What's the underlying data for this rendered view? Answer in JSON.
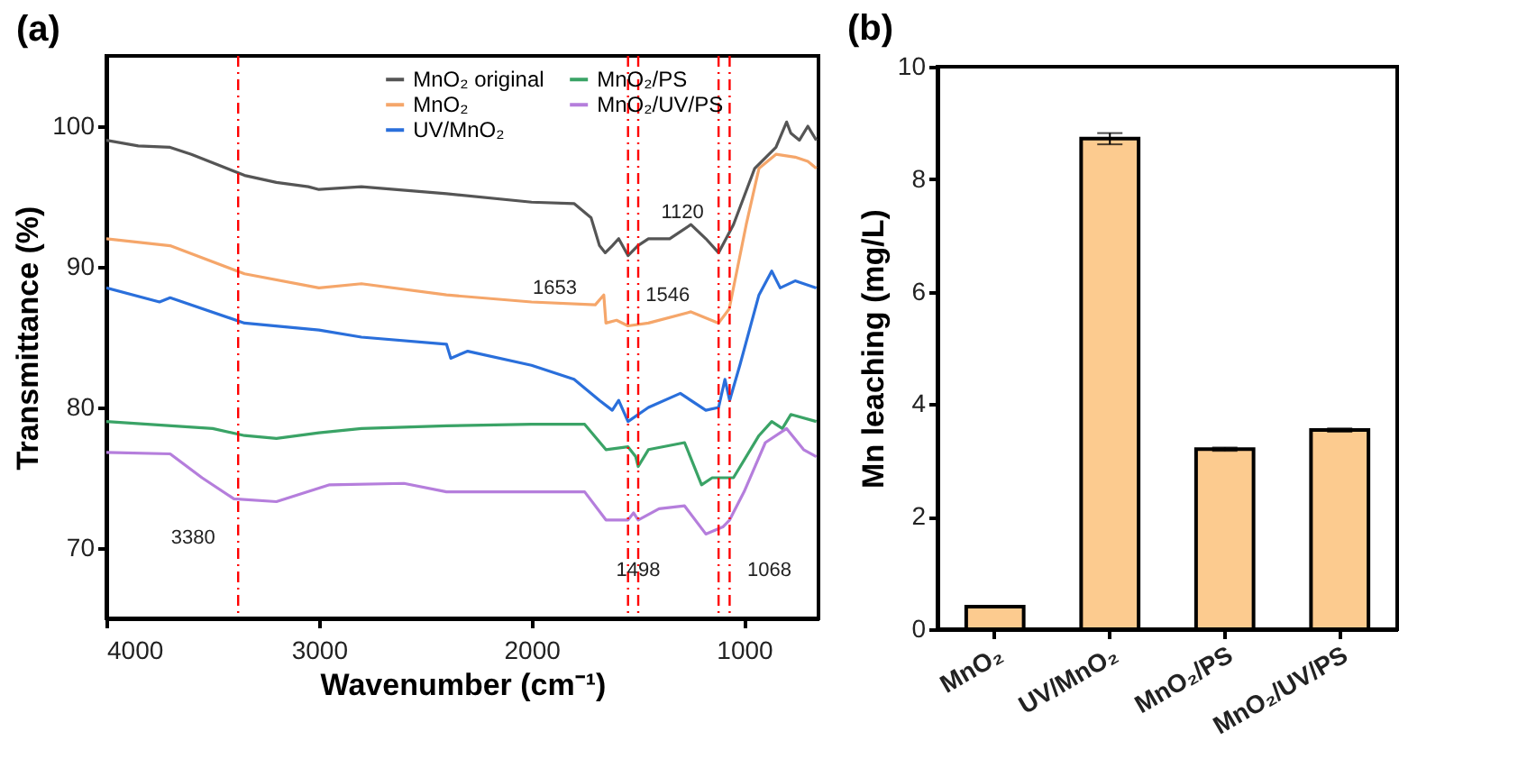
{
  "chart_data": [
    {
      "type": "line",
      "title": "(a)",
      "xlabel": "Wavenumber (cm⁻¹)",
      "ylabel": "Transmittance (%)",
      "xlim": [
        4000,
        650
      ],
      "xticks": [
        4000,
        3000,
        2000,
        1000
      ],
      "ylim": [
        65,
        105
      ],
      "yticks": [
        70,
        80,
        90,
        100
      ],
      "grid": false,
      "legend": "top",
      "series": [
        {
          "name": "MnO₂ original",
          "color": "#555555",
          "x": [
            4000,
            3850,
            3700,
            3600,
            3350,
            3200,
            3050,
            3000,
            2800,
            2400,
            2000,
            1800,
            1720,
            1680,
            1653,
            1620,
            1590,
            1546,
            1500,
            1450,
            1350,
            1250,
            1180,
            1120,
            1050,
            950,
            850,
            800,
            780,
            740,
            700,
            660
          ],
          "values": [
            99,
            98.6,
            98.5,
            98,
            96.5,
            96,
            95.7,
            95.5,
            95.7,
            95.2,
            94.6,
            94.5,
            93.5,
            91.5,
            91,
            91.5,
            92,
            90.8,
            91.5,
            92,
            92,
            93,
            92,
            91,
            93,
            97,
            98.5,
            100.3,
            99.5,
            99,
            100,
            99
          ]
        },
        {
          "name": "MnO₂",
          "color": "#f5a66a",
          "x": [
            4000,
            3700,
            3350,
            3000,
            2800,
            2400,
            2000,
            1700,
            1660,
            1650,
            1600,
            1546,
            1450,
            1250,
            1120,
            1070,
            990,
            930,
            850,
            760,
            700,
            660
          ],
          "values": [
            92,
            91.5,
            89.5,
            88.5,
            88.8,
            88,
            87.5,
            87.3,
            88,
            86,
            86.2,
            85.8,
            86,
            86.8,
            86,
            87,
            93,
            97,
            98,
            97.8,
            97.5,
            97
          ]
        },
        {
          "name": "UV/MnO₂",
          "color": "#2a6fdb",
          "x": [
            4000,
            3750,
            3700,
            3350,
            3000,
            2800,
            2400,
            2380,
            2300,
            2000,
            1800,
            1680,
            1620,
            1590,
            1546,
            1450,
            1300,
            1180,
            1120,
            1090,
            1068,
            1020,
            930,
            870,
            830,
            760,
            660
          ],
          "values": [
            88.5,
            87.5,
            87.8,
            86,
            85.5,
            85,
            84.5,
            83.5,
            84,
            83,
            82,
            80.5,
            79.8,
            80.5,
            79,
            80,
            81,
            79.8,
            80,
            82,
            80.5,
            83,
            88,
            89.7,
            88.5,
            89,
            88.5
          ]
        },
        {
          "name": "MnO₂/PS",
          "color": "#3aa366",
          "x": [
            4000,
            3500,
            3350,
            3200,
            3000,
            2800,
            2400,
            2000,
            1750,
            1650,
            1546,
            1510,
            1498,
            1450,
            1280,
            1200,
            1150,
            1050,
            930,
            870,
            820,
            780,
            660
          ],
          "values": [
            79,
            78.5,
            78,
            77.8,
            78.2,
            78.5,
            78.7,
            78.8,
            78.8,
            77,
            77.2,
            76.5,
            75.8,
            77,
            77.5,
            74.5,
            75,
            75,
            78,
            79,
            78.5,
            79.5,
            79
          ]
        },
        {
          "name": "MnO₂/UV/PS",
          "color": "#b57edc",
          "x": [
            4000,
            3700,
            3550,
            3400,
            3200,
            2950,
            2600,
            2400,
            1750,
            1650,
            1546,
            1520,
            1498,
            1400,
            1280,
            1180,
            1100,
            1068,
            1000,
            900,
            800,
            720,
            660
          ],
          "values": [
            76.8,
            76.7,
            75,
            73.5,
            73.3,
            74.5,
            74.6,
            74,
            74,
            72,
            72,
            72.5,
            72,
            72.8,
            73,
            71,
            71.5,
            72,
            74,
            77.5,
            78.5,
            77,
            76.5
          ]
        }
      ],
      "ref_lines": [
        {
          "axis": "x",
          "value": 3380,
          "color": "#ff0000",
          "line_style": "dashed"
        },
        {
          "axis": "x",
          "value": 1546,
          "color": "#ff0000",
          "line_style": "dashed"
        },
        {
          "axis": "x",
          "value": 1498,
          "color": "#ff0000",
          "line_style": "dashed"
        },
        {
          "axis": "x",
          "value": 1120,
          "color": "#ff0000",
          "line_style": "dashed"
        },
        {
          "axis": "x",
          "value": 1068,
          "color": "#ff0000",
          "line_style": "dashed"
        }
      ],
      "annotations": [
        {
          "text": "1653",
          "x": 1653,
          "y": 91
        },
        {
          "text": "1546",
          "x": 1546,
          "y": 90.8
        },
        {
          "text": "1120",
          "x": 1120,
          "y": 91
        },
        {
          "text": "3380",
          "x": 3380,
          "y": 73.5
        },
        {
          "text": "1498",
          "x": 1498,
          "y": 72
        },
        {
          "text": "1068",
          "x": 1068,
          "y": 72
        }
      ]
    },
    {
      "type": "bar",
      "title": "(b)",
      "ylabel": "Mn leaching (mg/L)",
      "categories": [
        "MnO₂",
        "UV/MnO₂",
        "MnO₂/PS",
        "MnO₂/UV/PS"
      ],
      "values": [
        0.4,
        8.72,
        3.2,
        3.54
      ],
      "errors": [
        null,
        0.1,
        0.03,
        0.03
      ],
      "color": "#fccb8f",
      "ylim": [
        0,
        10
      ],
      "yticks": [
        0,
        2,
        4,
        6,
        8,
        10
      ],
      "grid": false
    }
  ]
}
